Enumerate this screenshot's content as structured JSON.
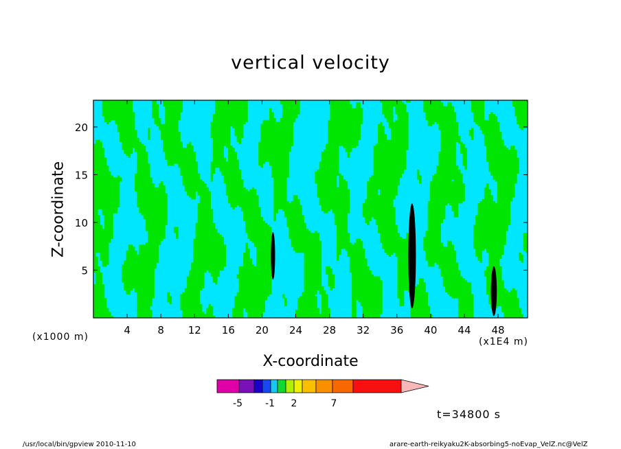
{
  "chart_data": {
    "type": "heatmap",
    "title": "vertical velocity",
    "xlabel": "X-coordinate",
    "ylabel": "Z-coordinate",
    "x_unit_left": "(x1000 m)",
    "x_unit_right": "(x1E4 m)",
    "x_ticks": [
      "4",
      "8",
      "12",
      "16",
      "20",
      "24",
      "28",
      "32",
      "36",
      "40",
      "44",
      "48"
    ],
    "y_ticks": [
      "5",
      "10",
      "15",
      "20"
    ],
    "xlim": [
      0,
      51.5
    ],
    "ylim": [
      0,
      22.8
    ],
    "colorbar": {
      "labels": [
        "-5",
        "-1",
        "2",
        "7"
      ],
      "colors": [
        "#e000a8",
        "#7a10b8",
        "#1a00c8",
        "#1848f0",
        "#18c8f0",
        "#10d830",
        "#b0f000",
        "#f0f000",
        "#f8c000",
        "#f89000",
        "#f86800",
        "#f81010",
        "#f87878",
        "#f8b8b8"
      ]
    },
    "field_colors": {
      "negative": "#00e6ff",
      "positive": "#00e600",
      "strong_positive": "#000000"
    },
    "time_label": "t=34800 s"
  },
  "footer": {
    "left": "/usr/local/bin/gpview  2010-11-10",
    "right": "arare-earth-reikyaku2K-absorbing5-noEvap_VelZ.nc@VelZ"
  }
}
